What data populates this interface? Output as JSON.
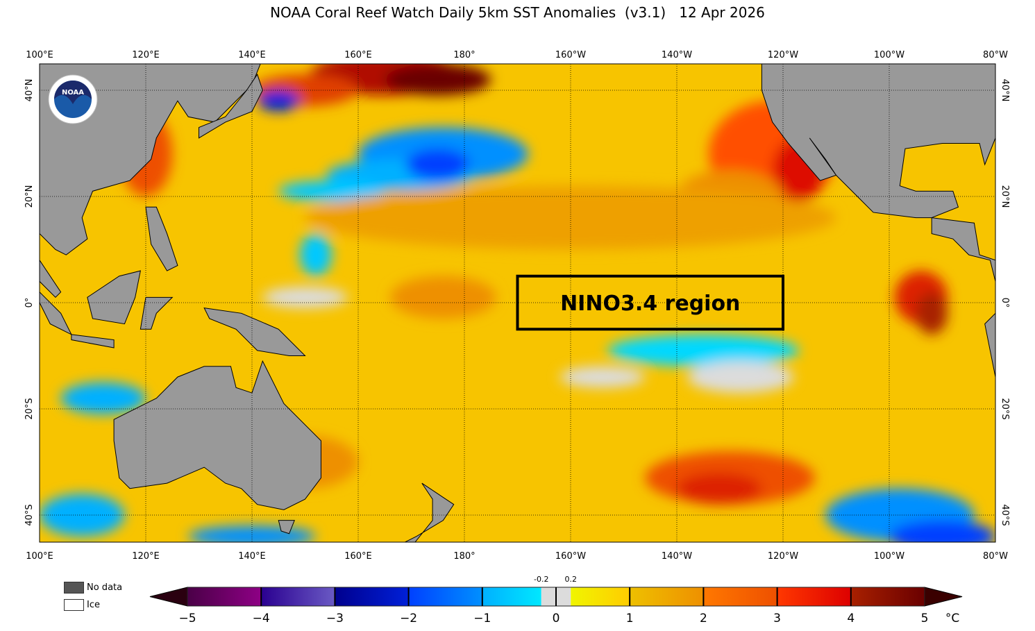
{
  "title": "NOAA Coral Reef Watch Daily 5km SST Anomalies  (v3.1)   12 Apr 2026",
  "map": {
    "lon_labels": [
      "100°E",
      "120°E",
      "140°E",
      "160°E",
      "180°",
      "160°W",
      "140°W",
      "120°W",
      "100°W",
      "80°W"
    ],
    "lat_labels": [
      "40°N",
      "20°N",
      "0°",
      "20°S",
      "40°S"
    ],
    "annotation": "NINO3.4 region",
    "nino34_box": {
      "lon_range": [
        "170°W",
        "120°W"
      ],
      "lat_range": [
        "5°S",
        "5°N"
      ]
    },
    "land_color": "#999999",
    "logo": "NOAA"
  },
  "legend": {
    "no_data_label": "No data",
    "no_data_color": "#555555",
    "ice_label": "Ice",
    "ice_color": "#ffffff"
  },
  "colorbar": {
    "ticks": [
      "−5",
      "−4",
      "−3",
      "−2",
      "−1",
      "0",
      "1",
      "2",
      "3",
      "4",
      "5"
    ],
    "minor_labels": [
      "-0.2",
      "0.2"
    ],
    "unit": "°C",
    "segments": [
      {
        "from": -5,
        "to": -4,
        "colors": [
          "#4a0047",
          "#8e0085"
        ]
      },
      {
        "from": -4,
        "to": -3,
        "colors": [
          "#2a0090",
          "#6a5ac4"
        ]
      },
      {
        "from": -3,
        "to": -2,
        "colors": [
          "#00008e",
          "#0020d8"
        ]
      },
      {
        "from": -2,
        "to": -1,
        "colors": [
          "#0040ff",
          "#0090ff"
        ]
      },
      {
        "from": -1,
        "to": -0.2,
        "colors": [
          "#00b0ff",
          "#00e8ff"
        ]
      },
      {
        "from": -0.2,
        "to": 0.2,
        "colors": [
          "#dcdcdc",
          "#dcdcdc"
        ]
      },
      {
        "from": 0.2,
        "to": 1,
        "colors": [
          "#f0f500",
          "#ffcc00"
        ]
      },
      {
        "from": 1,
        "to": 2,
        "colors": [
          "#eec000",
          "#ee9000"
        ]
      },
      {
        "from": 2,
        "to": 3,
        "colors": [
          "#ff7800",
          "#ee5000"
        ]
      },
      {
        "from": 3,
        "to": 4,
        "colors": [
          "#ff3800",
          "#dd0000"
        ]
      },
      {
        "from": 4,
        "to": 5,
        "colors": [
          "#a82000",
          "#6a0000"
        ]
      }
    ],
    "under_color": "#2a0010",
    "over_color": "#3a0000"
  }
}
